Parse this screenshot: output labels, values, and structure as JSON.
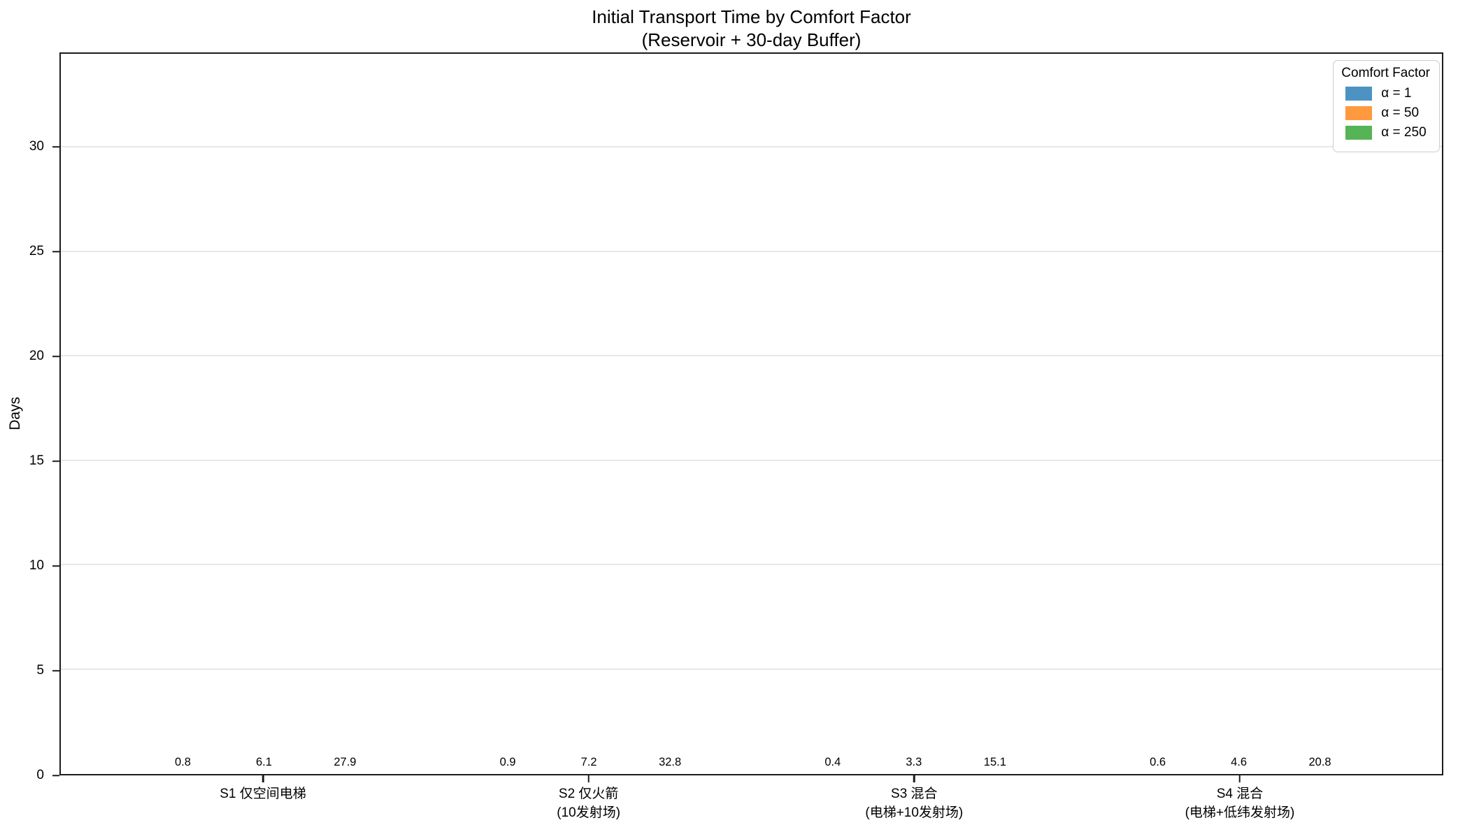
{
  "title": {
    "line1": "Initial Transport Time by Comfort Factor",
    "line2": "(Reservoir + 30-day Buffer)"
  },
  "chart_data": {
    "type": "bar",
    "title": "Initial Transport Time by Comfort Factor\n(Reservoir + 30-day Buffer)",
    "xlabel": "",
    "ylabel": "Days",
    "ylim": [
      0,
      34.5
    ],
    "yticks": [
      0,
      5,
      10,
      15,
      20,
      25,
      30
    ],
    "grid": "horizontal",
    "legend_title": "Comfort Factor",
    "legend_position": "upper right",
    "categories": [
      "S1 仅空间电梯",
      "S2 仅火箭\n(10发射场)",
      "S3 混合\n(电梯+10发射场)",
      "S4 混合\n(电梯+低纬发射场)"
    ],
    "series": [
      {
        "name": "α = 1",
        "color": "#4C92C3",
        "values": [
          0.8,
          0.9,
          0.4,
          0.6
        ]
      },
      {
        "name": "α = 50",
        "color": "#FF993E",
        "values": [
          6.1,
          7.2,
          3.3,
          4.6
        ]
      },
      {
        "name": "α = 250",
        "color": "#56B356",
        "values": [
          27.9,
          32.8,
          15.1,
          20.8
        ]
      }
    ]
  },
  "colors": {
    "grid": "#e7e7e7",
    "spine": "#1c1c1c",
    "background": "#ffffff",
    "legend_border": "#cccccc"
  }
}
